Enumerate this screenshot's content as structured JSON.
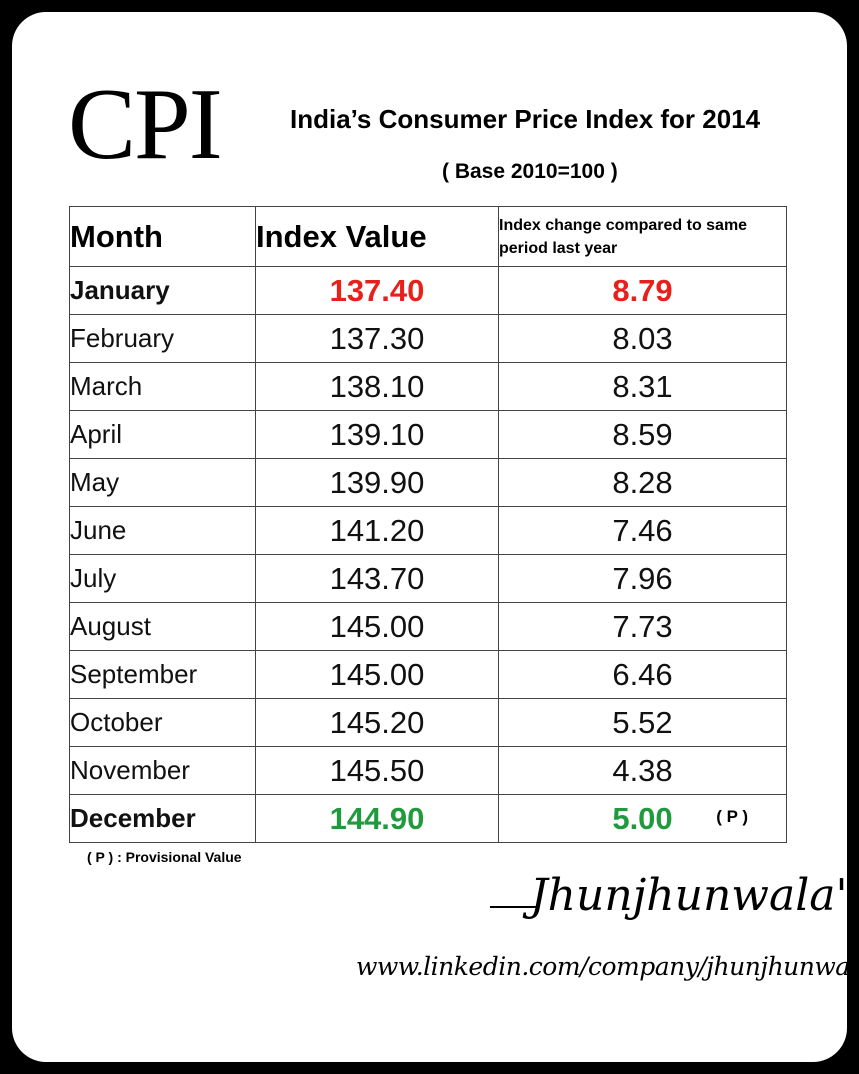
{
  "logo": "CPI",
  "title": "India’s Consumer Price Index for 2014",
  "subtitle": "( Base 2010=100 )",
  "colors": {
    "january": "#e8201b",
    "december": "#1f9a3c"
  },
  "table": {
    "headers": {
      "month": "Month",
      "index": "Index Value",
      "change": "Index change compared to same period last year"
    },
    "rows": [
      {
        "month": "January",
        "index": "137.40",
        "change": "8.79"
      },
      {
        "month": "February",
        "index": "137.30",
        "change": "8.03"
      },
      {
        "month": "March",
        "index": "138.10",
        "change": "8.31"
      },
      {
        "month": "April",
        "index": "139.10",
        "change": "8.59"
      },
      {
        "month": "May",
        "index": "139.90",
        "change": "8.28"
      },
      {
        "month": "June",
        "index": "141.20",
        "change": "7.46"
      },
      {
        "month": "July",
        "index": "143.70",
        "change": "7.96"
      },
      {
        "month": "August",
        "index": "145.00",
        "change": "7.73"
      },
      {
        "month": "September",
        "index": "145.00",
        "change": "6.46"
      },
      {
        "month": "October",
        "index": "145.20",
        "change": "5.52"
      },
      {
        "month": "November",
        "index": "145.50",
        "change": "4.38"
      },
      {
        "month": "December",
        "index": "144.90",
        "change": "5.00",
        "flag": "( P )"
      }
    ]
  },
  "footnote": "( P ) : Provisional Value",
  "signature": "Jhunjhunwala's",
  "weblink": "www.linkedin.com/company/jhunjhunwalas"
}
